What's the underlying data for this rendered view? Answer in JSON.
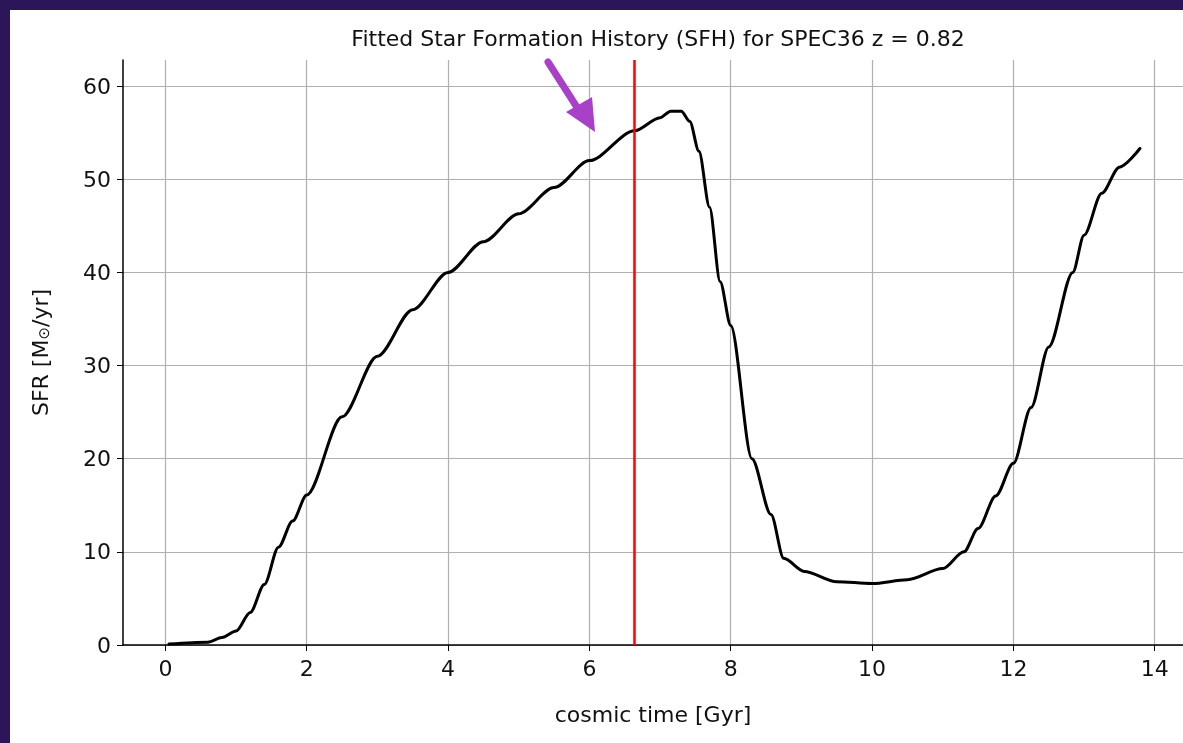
{
  "chart_data": {
    "type": "line",
    "title": "Fitted Star Formation History (SFH) for SPEC36 z = 0.82",
    "xlabel": "cosmic time [Gyr]",
    "ylabel": "SFR [M$_{⊙}$/yr]",
    "x": [
      0.05,
      0.6,
      0.8,
      1.0,
      1.2,
      1.4,
      1.6,
      1.8,
      2.0,
      2.5,
      3.0,
      3.5,
      4.0,
      4.5,
      5.0,
      5.5,
      6.0,
      6.64,
      7.0,
      7.15,
      7.3,
      7.42,
      7.55,
      7.7,
      7.85,
      8.0,
      8.3,
      8.57,
      8.75,
      9.04,
      9.5,
      10.0,
      10.5,
      11.0,
      11.3,
      11.5,
      11.75,
      12.0,
      12.25,
      12.5,
      12.84,
      13.0,
      13.25,
      13.5,
      13.79
    ],
    "series": [
      {
        "color": "#000000",
        "values": [
          0.1,
          0.3,
          0.8,
          1.5,
          3.5,
          6.5,
          10.5,
          13.3,
          16.1,
          24.5,
          31,
          36,
          40,
          43.3,
          46.3,
          49.1,
          52,
          55.2,
          56.6,
          57.3,
          57.3,
          56.2,
          53,
          47,
          39,
          34.3,
          20,
          14,
          9.3,
          7.9,
          6.8,
          6.6,
          7,
          8.2,
          10,
          12.5,
          16,
          19.5,
          25.5,
          32,
          40,
          44,
          48.5,
          51.3,
          53.3
        ]
      }
    ],
    "xlim": [
      -0.6,
      14.4
    ],
    "xticks": [
      0,
      2,
      4,
      6,
      8,
      10,
      12,
      14
    ],
    "ylim": [
      0,
      62.8
    ],
    "yticks": [
      0,
      10,
      20,
      30,
      40,
      50,
      60
    ],
    "ref_lines": [
      {
        "axis": "x",
        "value": 6.64,
        "color": "#ff0000"
      }
    ],
    "grid": true
  }
}
